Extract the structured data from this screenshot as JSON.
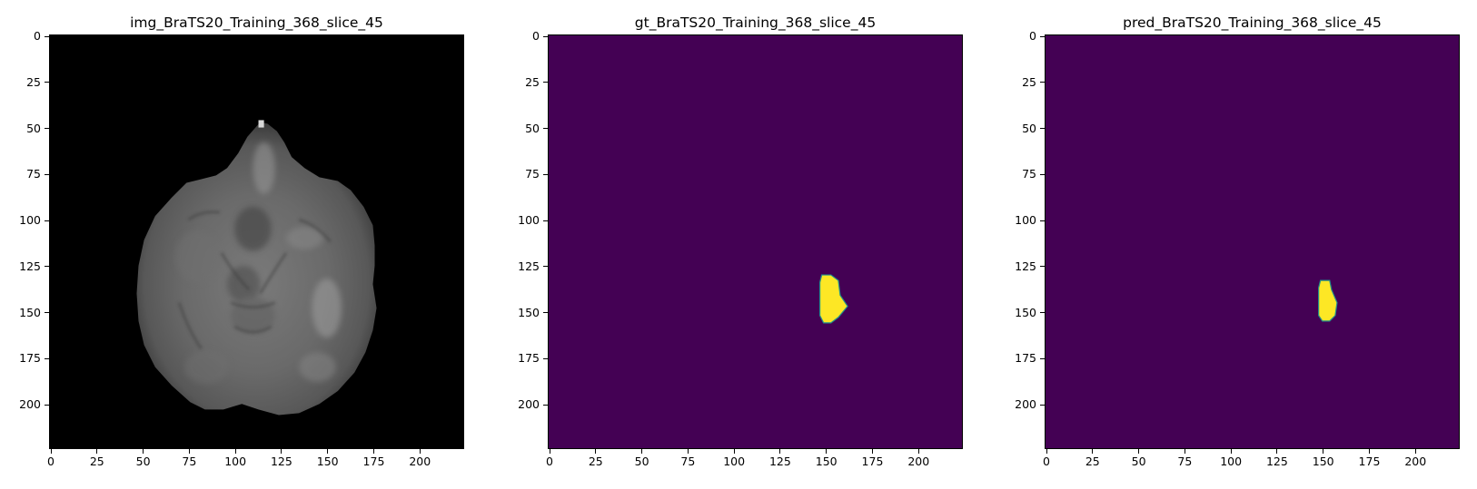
{
  "figure": {
    "panels": [
      {
        "id": "img",
        "title": "img_BraTS20_Training_368_slice_45",
        "kind": "mri-slice",
        "x_ticks": [
          "0",
          "25",
          "50",
          "75",
          "100",
          "125",
          "150",
          "175",
          "200"
        ],
        "y_ticks": [
          "0",
          "25",
          "50",
          "75",
          "100",
          "125",
          "150",
          "175",
          "200"
        ]
      },
      {
        "id": "gt",
        "title": "gt_BraTS20_Training_368_slice_45",
        "kind": "mask",
        "x_ticks": [
          "0",
          "25",
          "50",
          "75",
          "100",
          "125",
          "150",
          "175",
          "200"
        ],
        "y_ticks": [
          "0",
          "25",
          "50",
          "75",
          "100",
          "125",
          "150",
          "175",
          "200"
        ]
      },
      {
        "id": "pred",
        "title": "pred_BraTS20_Training_368_slice_45",
        "kind": "mask",
        "x_ticks": [
          "0",
          "25",
          "50",
          "75",
          "100",
          "125",
          "150",
          "175",
          "200"
        ],
        "y_ticks": [
          "0",
          "25",
          "50",
          "75",
          "100",
          "125",
          "150",
          "175",
          "200"
        ]
      }
    ],
    "image_extent": [
      224,
      224
    ],
    "colors": {
      "mask_background": "#440154",
      "mask_foreground": "#fde725",
      "mask_edge": "#21918c",
      "mri_background": "#000000"
    },
    "mask_regions": {
      "gt": [
        [
          148,
          130
        ],
        [
          153,
          130
        ],
        [
          157,
          133
        ],
        [
          158,
          141
        ],
        [
          162,
          147
        ],
        [
          157,
          153
        ],
        [
          153,
          156
        ],
        [
          149,
          156
        ],
        [
          147,
          152
        ],
        [
          147,
          134
        ]
      ],
      "pred": [
        [
          149,
          133
        ],
        [
          154,
          133
        ],
        [
          155,
          138
        ],
        [
          158,
          145
        ],
        [
          157,
          152
        ],
        [
          154,
          155
        ],
        [
          150,
          155
        ],
        [
          148,
          152
        ],
        [
          148,
          137
        ]
      ]
    }
  }
}
